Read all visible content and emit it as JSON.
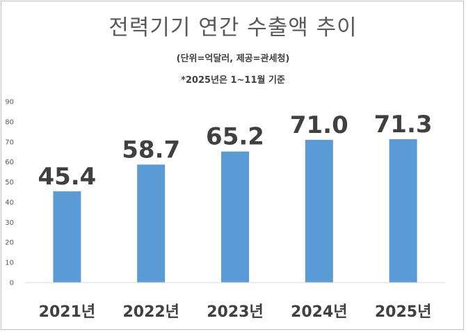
{
  "chart_data": {
    "type": "bar",
    "title": "전력기기 연간 수출액 추이",
    "subtitle": "(단위=억달러, 제공=관세청)",
    "note": "*2025년은 1~11월 기준",
    "categories": [
      "2021년",
      "2022년",
      "2023년",
      "2024년",
      "2025년"
    ],
    "values": [
      45.4,
      58.7,
      65.2,
      71.0,
      71.3
    ],
    "data_labels": [
      "45.4",
      "58.7",
      "65.2",
      "71.0",
      "71.3"
    ],
    "y_ticks": [
      "0",
      "10",
      "20",
      "30",
      "40",
      "50",
      "60",
      "70",
      "80",
      "90"
    ],
    "ylim": [
      0,
      90
    ],
    "grid": false,
    "bar_color": "#5b9bd5",
    "xlabel": "",
    "ylabel": ""
  }
}
